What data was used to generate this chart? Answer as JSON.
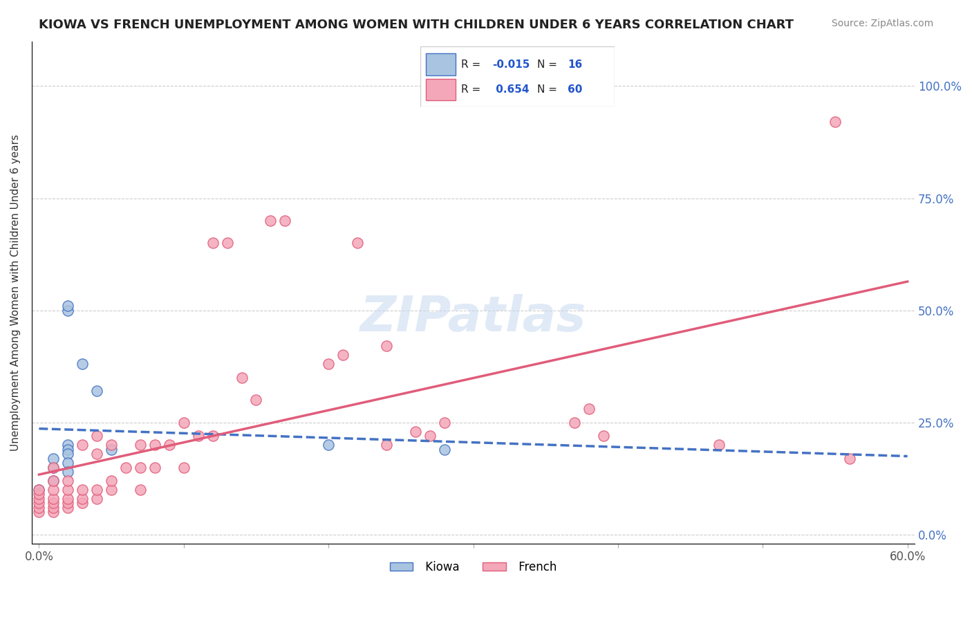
{
  "title": "KIOWA VS FRENCH UNEMPLOYMENT AMONG WOMEN WITH CHILDREN UNDER 6 YEARS CORRELATION CHART",
  "source": "Source: ZipAtlas.com",
  "ylabel": "Unemployment Among Women with Children Under 6 years",
  "xlim": [
    0.0,
    0.6
  ],
  "ylim": [
    -0.02,
    1.1
  ],
  "xticks": [
    0.0,
    0.1,
    0.2,
    0.3,
    0.4,
    0.5,
    0.6
  ],
  "xtick_labels": [
    "0.0%",
    "",
    "",
    "",
    "",
    "",
    "60.0%"
  ],
  "yticks_left": [
    0.0,
    0.25,
    0.5,
    0.75,
    1.0
  ],
  "ytick_labels_right": [
    "0.0%",
    "25.0%",
    "50.0%",
    "75.0%",
    "100.0%"
  ],
  "kiowa_R": -0.015,
  "kiowa_N": 16,
  "french_R": 0.654,
  "french_N": 60,
  "kiowa_color": "#a8c4e0",
  "kiowa_line_color": "#4472c4",
  "french_color": "#f4a7b9",
  "french_line_color": "#e05c7a",
  "watermark": "ZIPatlas",
  "legend_text_color": "#2255cc",
  "kiowa_x": [
    0.0,
    0.01,
    0.01,
    0.01,
    0.02,
    0.02,
    0.02,
    0.02,
    0.02,
    0.02,
    0.02,
    0.03,
    0.04,
    0.05,
    0.2,
    0.28
  ],
  "kiowa_y": [
    0.1,
    0.12,
    0.15,
    0.17,
    0.5,
    0.51,
    0.2,
    0.19,
    0.18,
    0.16,
    0.14,
    0.38,
    0.32,
    0.19,
    0.2,
    0.19
  ],
  "french_x": [
    0.0,
    0.0,
    0.0,
    0.0,
    0.0,
    0.0,
    0.01,
    0.01,
    0.01,
    0.01,
    0.01,
    0.01,
    0.01,
    0.02,
    0.02,
    0.02,
    0.02,
    0.02,
    0.03,
    0.03,
    0.03,
    0.03,
    0.04,
    0.04,
    0.04,
    0.04,
    0.05,
    0.05,
    0.05,
    0.06,
    0.07,
    0.07,
    0.07,
    0.08,
    0.08,
    0.09,
    0.1,
    0.1,
    0.11,
    0.12,
    0.12,
    0.13,
    0.14,
    0.15,
    0.16,
    0.17,
    0.2,
    0.21,
    0.22,
    0.24,
    0.24,
    0.26,
    0.27,
    0.28,
    0.37,
    0.38,
    0.39,
    0.47,
    0.55,
    0.56
  ],
  "french_y": [
    0.05,
    0.06,
    0.07,
    0.08,
    0.09,
    0.1,
    0.05,
    0.06,
    0.07,
    0.08,
    0.1,
    0.12,
    0.15,
    0.06,
    0.07,
    0.08,
    0.1,
    0.12,
    0.07,
    0.08,
    0.1,
    0.2,
    0.08,
    0.1,
    0.18,
    0.22,
    0.1,
    0.12,
    0.2,
    0.15,
    0.1,
    0.15,
    0.2,
    0.15,
    0.2,
    0.2,
    0.15,
    0.25,
    0.22,
    0.22,
    0.65,
    0.65,
    0.35,
    0.3,
    0.7,
    0.7,
    0.38,
    0.4,
    0.65,
    0.2,
    0.42,
    0.23,
    0.22,
    0.25,
    0.25,
    0.28,
    0.22,
    0.2,
    0.92,
    0.17
  ]
}
